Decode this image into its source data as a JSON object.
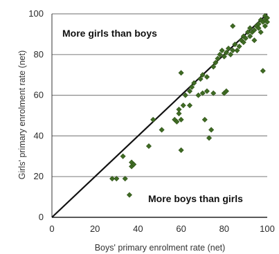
{
  "chart_data": {
    "type": "scatter",
    "xlabel": "Boys' primary enrolment rate (net)",
    "ylabel": "Girls' primary enrolment rate (net)",
    "xlim": [
      0,
      100
    ],
    "ylim": [
      0,
      100
    ],
    "x_ticks": [
      "0",
      "20",
      "40",
      "60",
      "80",
      "100"
    ],
    "y_ticks": [
      "0",
      "20",
      "40",
      "60",
      "80",
      "100"
    ],
    "grid": "horizontal",
    "reference_line": "y = x",
    "annotations": {
      "upper_left": "More girls than boys",
      "lower_right": "More boys than girls"
    },
    "colors": {
      "marker": "#3f6b24",
      "grid": "#8a8a8a",
      "line": "#111111"
    },
    "points": [
      {
        "x": 28,
        "y": 19
      },
      {
        "x": 30,
        "y": 19
      },
      {
        "x": 33,
        "y": 30
      },
      {
        "x": 34,
        "y": 19
      },
      {
        "x": 36,
        "y": 11
      },
      {
        "x": 37,
        "y": 25
      },
      {
        "x": 37,
        "y": 27
      },
      {
        "x": 38,
        "y": 26
      },
      {
        "x": 45,
        "y": 35
      },
      {
        "x": 47,
        "y": 48
      },
      {
        "x": 51,
        "y": 43
      },
      {
        "x": 57,
        "y": 48
      },
      {
        "x": 58,
        "y": 47
      },
      {
        "x": 59,
        "y": 51
      },
      {
        "x": 59,
        "y": 53
      },
      {
        "x": 60,
        "y": 33
      },
      {
        "x": 60,
        "y": 71
      },
      {
        "x": 60,
        "y": 48
      },
      {
        "x": 61,
        "y": 55
      },
      {
        "x": 62,
        "y": 60
      },
      {
        "x": 64,
        "y": 55
      },
      {
        "x": 64,
        "y": 62
      },
      {
        "x": 65,
        "y": 64
      },
      {
        "x": 66,
        "y": 66
      },
      {
        "x": 68,
        "y": 60
      },
      {
        "x": 69,
        "y": 68
      },
      {
        "x": 70,
        "y": 70
      },
      {
        "x": 70,
        "y": 61
      },
      {
        "x": 71,
        "y": 48
      },
      {
        "x": 72,
        "y": 62
      },
      {
        "x": 72,
        "y": 69
      },
      {
        "x": 73,
        "y": 39
      },
      {
        "x": 74,
        "y": 43
      },
      {
        "x": 75,
        "y": 61
      },
      {
        "x": 75,
        "y": 74
      },
      {
        "x": 76,
        "y": 76
      },
      {
        "x": 77,
        "y": 78
      },
      {
        "x": 78,
        "y": 80
      },
      {
        "x": 79,
        "y": 82
      },
      {
        "x": 80,
        "y": 61
      },
      {
        "x": 80,
        "y": 79
      },
      {
        "x": 81,
        "y": 62
      },
      {
        "x": 81,
        "y": 81
      },
      {
        "x": 82,
        "y": 83
      },
      {
        "x": 83,
        "y": 80
      },
      {
        "x": 84,
        "y": 82
      },
      {
        "x": 84,
        "y": 94
      },
      {
        "x": 85,
        "y": 85
      },
      {
        "x": 86,
        "y": 82
      },
      {
        "x": 87,
        "y": 84
      },
      {
        "x": 88,
        "y": 87
      },
      {
        "x": 89,
        "y": 86
      },
      {
        "x": 89,
        "y": 89
      },
      {
        "x": 90,
        "y": 88
      },
      {
        "x": 91,
        "y": 91
      },
      {
        "x": 92,
        "y": 89
      },
      {
        "x": 92,
        "y": 93
      },
      {
        "x": 93,
        "y": 91
      },
      {
        "x": 94,
        "y": 92
      },
      {
        "x": 94,
        "y": 87
      },
      {
        "x": 95,
        "y": 94
      },
      {
        "x": 96,
        "y": 95
      },
      {
        "x": 96,
        "y": 93
      },
      {
        "x": 97,
        "y": 97
      },
      {
        "x": 97,
        "y": 91
      },
      {
        "x": 98,
        "y": 72
      },
      {
        "x": 98,
        "y": 96
      },
      {
        "x": 99,
        "y": 99
      },
      {
        "x": 99,
        "y": 94
      },
      {
        "x": 99,
        "y": 97
      },
      {
        "x": 100,
        "y": 98
      },
      {
        "x": 100,
        "y": 96
      }
    ]
  }
}
